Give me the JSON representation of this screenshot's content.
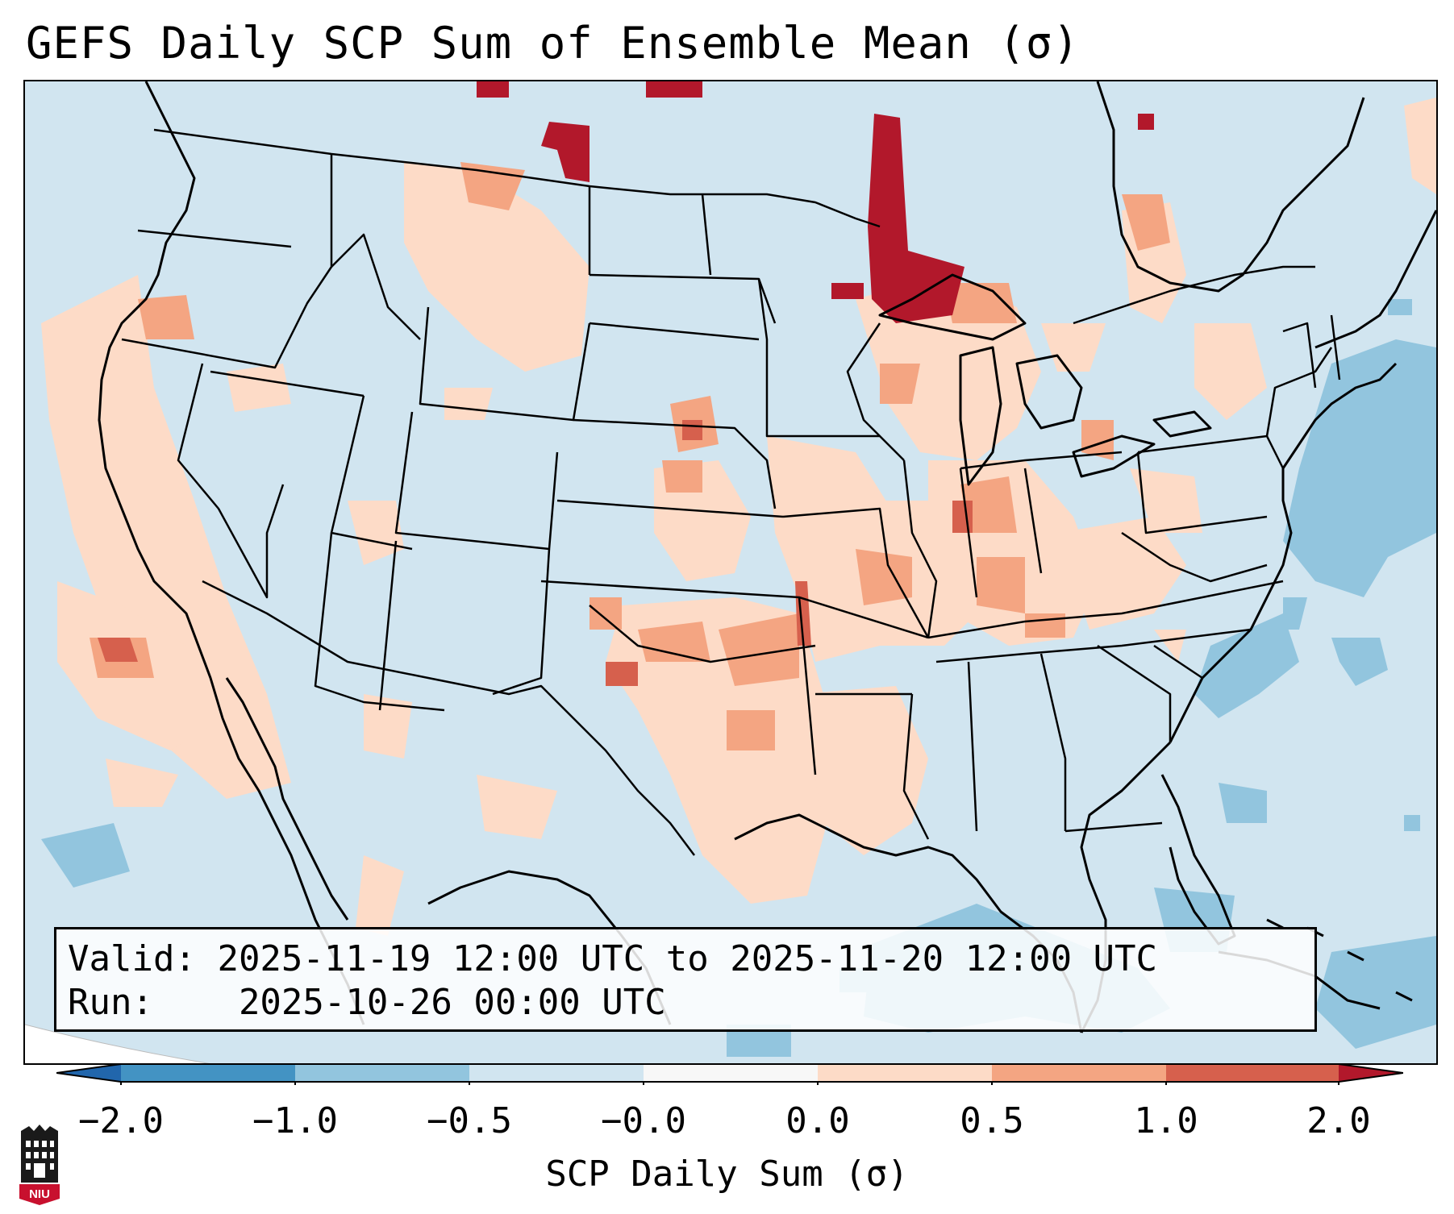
{
  "title": "GEFS Daily SCP Sum of Ensemble Mean (σ)",
  "info": {
    "valid_label": "Valid:",
    "valid_value": "2025-11-19 12:00 UTC to 2025-11-20 12:00 UTC",
    "run_label": "Run:",
    "run_value": "2025-10-26 00:00 UTC"
  },
  "colorbar": {
    "label": "SCP Daily Sum (σ)",
    "ticks": [
      "−2.0",
      "−1.0",
      "−0.5",
      "−0.0",
      "0.0",
      "0.5",
      "1.0",
      "2.0"
    ],
    "colors": {
      "lt_-2": "#2166ac",
      "-2_-1": "#4393c3",
      "-1_-0.5": "#92c5de",
      "-0.5_0": "#d1e5f0",
      "0": "#f7f7f7",
      "0_0.5": "#fddbc7",
      "0.5_1": "#f4a582",
      "1_2": "#d6604d",
      "gt_2": "#b2182b"
    }
  },
  "logo": {
    "text": "NIU"
  }
}
